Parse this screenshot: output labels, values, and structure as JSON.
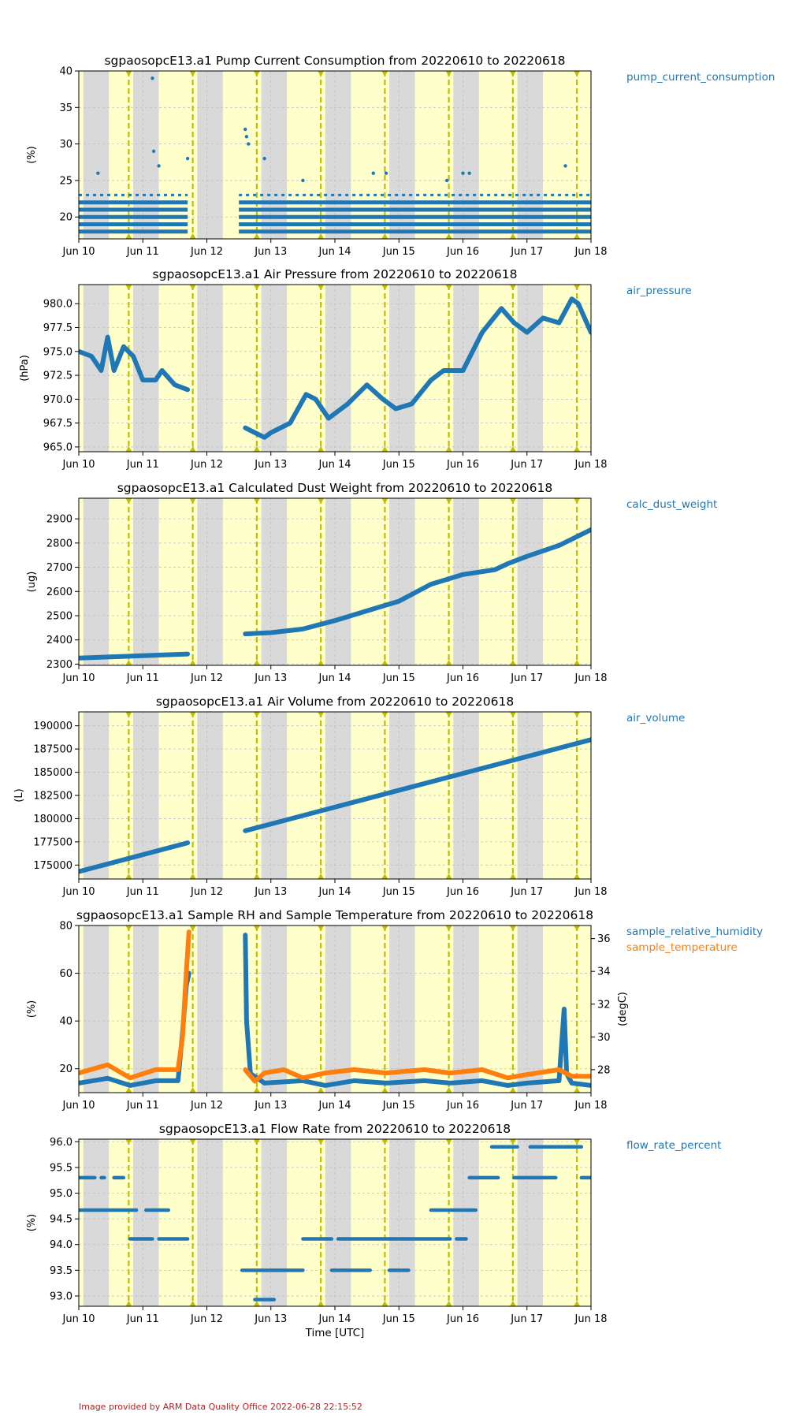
{
  "figure": {
    "credit": "Image provided by ARM Data Quality Office 2022-06-28 22:15:52",
    "xlabel": "Time [UTC]",
    "xticks": [
      "Jun 10",
      "Jun 11",
      "Jun 12",
      "Jun 13",
      "Jun 14",
      "Jun 15",
      "Jun 16",
      "Jun 17",
      "Jun 18"
    ],
    "xlim_days": [
      10,
      18
    ],
    "colors": {
      "series_blue": "#1f77b4",
      "series_orange": "#ff7f0e",
      "night_shade": "#d9d9d9",
      "day_shade": "#ffffcc",
      "noon_line": "#bfbf00",
      "grid": "#c0c0c0",
      "credit": "#b22222"
    },
    "background_bands": {
      "night_days": [
        10.0,
        10.85,
        11.85,
        12.85,
        13.85,
        14.85,
        15.85,
        16.85
      ],
      "night_hours_span": 0.4,
      "noon_lines_days": [
        10.78,
        11.78,
        12.78,
        13.78,
        14.78,
        15.78,
        16.78,
        17.78
      ]
    }
  },
  "chart_data": [
    {
      "type": "scatter",
      "title": "sgpaosopcE13.a1 Pump Current Consumption from 20220610 to 20220618",
      "ylabel": "(%)",
      "ylim": [
        17,
        40
      ],
      "yticks": [
        20,
        25,
        30,
        35,
        40
      ],
      "legend": [
        "pump_current_consumption"
      ],
      "grid": true,
      "series": [
        {
          "name": "pump_current_consumption",
          "color": "#1f77b4",
          "levels": [
            18,
            19,
            20,
            21,
            22,
            23
          ],
          "gaps": [
            [
              11.7,
              12.5
            ]
          ],
          "outliers": [
            [
              11.15,
              39
            ],
            [
              10.3,
              26
            ],
            [
              11.17,
              29
            ],
            [
              11.25,
              27
            ],
            [
              11.7,
              28
            ],
            [
              12.6,
              32
            ],
            [
              12.62,
              31
            ],
            [
              12.65,
              30
            ],
            [
              12.9,
              28
            ],
            [
              13.5,
              25
            ],
            [
              14.6,
              26
            ],
            [
              14.8,
              26
            ],
            [
              15.75,
              25
            ],
            [
              16.0,
              26
            ],
            [
              16.1,
              26
            ],
            [
              17.6,
              27
            ]
          ]
        }
      ]
    },
    {
      "type": "scatter",
      "title": "sgpaosopcE13.a1 Air Pressure from 20220610 to 20220618",
      "ylabel": "(hPa)",
      "ylim": [
        964.5,
        982
      ],
      "yticks": [
        965.0,
        967.5,
        970.0,
        972.5,
        975.0,
        977.5,
        980.0
      ],
      "yticklabels": [
        "965.0",
        "967.5",
        "970.0",
        "972.5",
        "975.0",
        "977.5",
        "980.0"
      ],
      "legend": [
        "air_pressure"
      ],
      "grid": true,
      "series": [
        {
          "name": "air_pressure",
          "color": "#1f77b4",
          "x": [
            10.0,
            10.2,
            10.35,
            10.45,
            10.55,
            10.7,
            10.85,
            11.0,
            11.2,
            11.3,
            11.5,
            11.7,
            12.6,
            12.75,
            12.9,
            13.0,
            13.3,
            13.55,
            13.7,
            13.9,
            14.2,
            14.5,
            14.75,
            14.95,
            15.2,
            15.5,
            15.7,
            16.0,
            16.3,
            16.6,
            16.8,
            17.0,
            17.25,
            17.5,
            17.7,
            17.8,
            18.0
          ],
          "y": [
            975.0,
            974.5,
            973.0,
            976.5,
            973.0,
            975.5,
            974.5,
            972.0,
            972.0,
            973.0,
            971.5,
            971.0,
            967.0,
            966.5,
            966.0,
            966.5,
            967.5,
            970.5,
            970.0,
            968.0,
            969.5,
            971.5,
            970.0,
            969.0,
            969.5,
            972.0,
            973.0,
            973.0,
            977.0,
            979.5,
            978.0,
            977.0,
            978.5,
            978.0,
            980.5,
            980.0,
            977.0
          ],
          "gaps": [
            [
              11.7,
              12.55
            ]
          ]
        }
      ]
    },
    {
      "type": "scatter",
      "title": "sgpaosopcE13.a1 Calculated Dust Weight from 20220610 to 20220618",
      "ylabel": "(ug)",
      "ylim": [
        2295,
        2985
      ],
      "yticks": [
        2300,
        2400,
        2500,
        2600,
        2700,
        2800,
        2900
      ],
      "legend": [
        "calc_dust_weight"
      ],
      "grid": true,
      "series": [
        {
          "name": "calc_dust_weight",
          "color": "#1f77b4",
          "x": [
            10.0,
            10.5,
            11.0,
            11.5,
            11.7,
            12.6,
            13.0,
            13.5,
            14.0,
            14.5,
            15.0,
            15.5,
            16.0,
            16.5,
            16.7,
            17.0,
            17.5,
            18.0
          ],
          "y": [
            2325,
            2330,
            2335,
            2340,
            2342,
            2425,
            2430,
            2445,
            2480,
            2520,
            2560,
            2630,
            2670,
            2690,
            2715,
            2745,
            2790,
            2855
          ],
          "gaps": [
            [
              11.7,
              12.6
            ]
          ]
        }
      ]
    },
    {
      "type": "scatter",
      "title": "sgpaosopcE13.a1 Air Volume from 20220610 to 20220618",
      "ylabel": "(L)",
      "ylim": [
        173500,
        191500
      ],
      "yticks": [
        175000,
        177500,
        180000,
        182500,
        185000,
        187500,
        190000
      ],
      "legend": [
        "air_volume"
      ],
      "grid": true,
      "series": [
        {
          "name": "air_volume",
          "color": "#1f77b4",
          "x": [
            10.0,
            11.7,
            12.6,
            18.0
          ],
          "y": [
            174300,
            177400,
            178700,
            188500
          ],
          "gaps": [
            [
              11.7,
              12.6
            ]
          ]
        }
      ]
    },
    {
      "type": "scatter",
      "title": "sgpaosopcE13.a1 Sample RH and Sample Temperature from 20220610 to 20220618",
      "ylabel": "(%)",
      "ylabel2": "(degC)",
      "ylim": [
        10,
        80
      ],
      "yticks": [
        20,
        40,
        60,
        80
      ],
      "ylim2": [
        26.6,
        36.8
      ],
      "yticks2": [
        28,
        30,
        32,
        34,
        36
      ],
      "legend": [
        "sample_relative_humidity",
        "sample_temperature"
      ],
      "grid": true,
      "series": [
        {
          "name": "sample_relative_humidity",
          "color": "#1f77b4",
          "axis": "left",
          "x": [
            10.0,
            10.45,
            10.8,
            11.2,
            11.55,
            11.62,
            11.68,
            11.72,
            12.6,
            12.62,
            12.68,
            12.9,
            13.5,
            13.85,
            14.3,
            14.8,
            15.4,
            15.8,
            16.3,
            16.7,
            17.0,
            17.5,
            17.58,
            17.62,
            17.7,
            18.0
          ],
          "y": [
            14,
            16,
            13,
            15,
            15,
            35,
            55,
            60,
            76,
            40,
            18,
            14,
            15,
            13,
            15,
            14,
            15,
            14,
            15,
            13,
            14,
            15,
            45,
            18,
            14,
            13
          ],
          "gaps": [
            [
              11.72,
              12.58
            ]
          ]
        },
        {
          "name": "sample_temperature",
          "color": "#ff7f0e",
          "axis": "right",
          "x": [
            10.0,
            10.45,
            10.8,
            11.2,
            11.55,
            11.62,
            11.68,
            11.72,
            12.6,
            12.75,
            12.9,
            13.2,
            13.5,
            13.85,
            14.3,
            14.8,
            15.4,
            15.8,
            16.3,
            16.7,
            17.0,
            17.5,
            17.7,
            18.0
          ],
          "y": [
            27.8,
            28.3,
            27.5,
            28.0,
            28.0,
            30.0,
            34.0,
            36.4,
            28.0,
            27.3,
            27.8,
            28.0,
            27.5,
            27.8,
            28.0,
            27.8,
            28.0,
            27.8,
            28.0,
            27.5,
            27.7,
            28.0,
            27.6,
            27.6
          ],
          "gaps": [
            [
              11.72,
              12.58
            ]
          ]
        }
      ]
    },
    {
      "type": "scatter",
      "title": "sgpaosopcE13.a1 Flow Rate from 20220610 to 20220618",
      "ylabel": "(%)",
      "ylim": [
        92.8,
        96.05
      ],
      "yticks": [
        93.0,
        93.5,
        94.0,
        94.5,
        95.0,
        95.5,
        96.0
      ],
      "yticklabels": [
        "93.0",
        "93.5",
        "94.0",
        "94.5",
        "95.0",
        "95.5",
        "96.0"
      ],
      "legend": [
        "flow_rate_percent"
      ],
      "grid": true,
      "series": [
        {
          "name": "flow_rate_percent",
          "color": "#1f77b4",
          "segments": [
            [
              10.0,
              10.25,
              95.3
            ],
            [
              10.35,
              10.4,
              95.3
            ],
            [
              10.55,
              10.7,
              95.3
            ],
            [
              10.0,
              10.9,
              94.67
            ],
            [
              11.05,
              11.4,
              94.67
            ],
            [
              10.8,
              11.15,
              94.11
            ],
            [
              11.25,
              11.7,
              94.11
            ],
            [
              12.55,
              13.5,
              93.5
            ],
            [
              12.75,
              13.05,
              92.93
            ],
            [
              13.5,
              13.95,
              94.11
            ],
            [
              13.95,
              14.55,
              93.5
            ],
            [
              14.05,
              15.05,
              94.11
            ],
            [
              14.85,
              15.15,
              93.5
            ],
            [
              15.05,
              15.8,
              94.11
            ],
            [
              15.5,
              16.2,
              94.67
            ],
            [
              15.9,
              16.05,
              94.11
            ],
            [
              16.1,
              16.55,
              95.3
            ],
            [
              16.45,
              16.85,
              95.9
            ],
            [
              16.8,
              17.45,
              95.3
            ],
            [
              17.05,
              17.85,
              95.9
            ],
            [
              17.85,
              18.0,
              95.3
            ]
          ]
        }
      ]
    }
  ]
}
